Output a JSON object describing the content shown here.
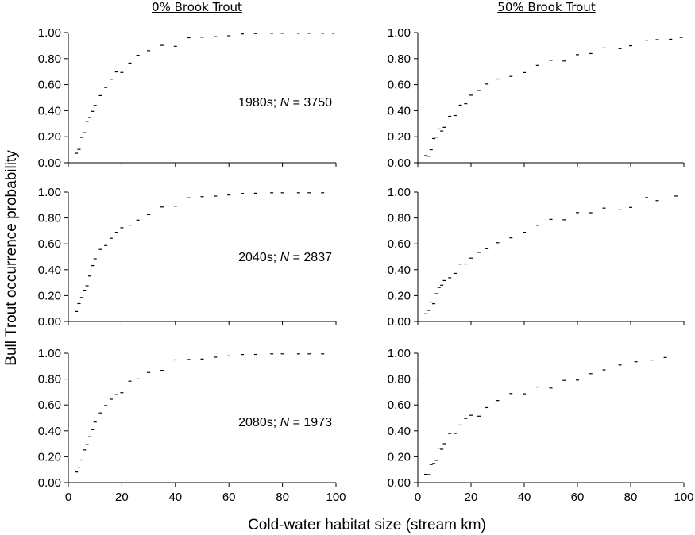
{
  "figure": {
    "column_titles": [
      "0% Brook Trout",
      "50% Brook Trout"
    ],
    "ylabel": "Bull Trout occurrence probability",
    "xlabel": "Cold-water habitat size (stream km)",
    "row_labels": [
      {
        "period": "1980s; ",
        "n_symbol": "N",
        "n_text": " = 3750"
      },
      {
        "period": "2040s; ",
        "n_symbol": "N",
        "n_text": " = 2837"
      },
      {
        "period": "2080s; ",
        "n_symbol": "N",
        "n_text": " = 1973"
      }
    ],
    "ytick_labels": [
      "0.00",
      "0.20",
      "0.40",
      "0.60",
      "0.80",
      "1.00"
    ],
    "xtick_labels": [
      "0",
      "20",
      "40",
      "60",
      "80",
      "100"
    ],
    "marker_color": "#000000"
  },
  "chart_data": [
    {
      "type": "scatter",
      "panel": "1980s, 0% Brook Trout",
      "xlim": [
        0,
        100
      ],
      "ylim": [
        0,
        1
      ],
      "grid": false,
      "n": 3750,
      "x": [
        3,
        4,
        5,
        6,
        7,
        8,
        9,
        10,
        12,
        14,
        16,
        18,
        20,
        23,
        26,
        30,
        35,
        40,
        45,
        50,
        55,
        60,
        65,
        70,
        76,
        80,
        86,
        90,
        95,
        99
      ],
      "y": [
        0.06,
        0.12,
        0.18,
        0.24,
        0.3,
        0.36,
        0.41,
        0.46,
        0.53,
        0.58,
        0.63,
        0.68,
        0.72,
        0.77,
        0.81,
        0.85,
        0.89,
        0.92,
        0.94,
        0.96,
        0.97,
        0.98,
        0.99,
        0.99,
        1.0,
        1.0,
        1.0,
        1.0,
        1.0,
        1.0
      ]
    },
    {
      "type": "scatter",
      "panel": "1980s, 50% Brook Trout",
      "xlim": [
        0,
        100
      ],
      "ylim": [
        0,
        1
      ],
      "grid": false,
      "n": 3750,
      "x": [
        3,
        4,
        5,
        6,
        7,
        8,
        9,
        10,
        12,
        14,
        16,
        18,
        20,
        23,
        26,
        30,
        35,
        40,
        45,
        50,
        55,
        60,
        65,
        70,
        76,
        80,
        86,
        90,
        95,
        99
      ],
      "y": [
        0.04,
        0.08,
        0.12,
        0.16,
        0.2,
        0.24,
        0.27,
        0.3,
        0.35,
        0.39,
        0.43,
        0.47,
        0.5,
        0.54,
        0.58,
        0.62,
        0.66,
        0.69,
        0.73,
        0.76,
        0.79,
        0.82,
        0.84,
        0.87,
        0.89,
        0.91,
        0.93,
        0.94,
        0.95,
        0.96
      ]
    },
    {
      "type": "scatter",
      "panel": "2040s, 0% Brook Trout",
      "xlim": [
        0,
        100
      ],
      "ylim": [
        0,
        1
      ],
      "grid": false,
      "n": 2837,
      "x": [
        3,
        4,
        5,
        6,
        7,
        8,
        9,
        10,
        12,
        14,
        16,
        18,
        20,
        23,
        26,
        30,
        35,
        40,
        45,
        50,
        55,
        60,
        65,
        70,
        76,
        80,
        86,
        90,
        95
      ],
      "y": [
        0.06,
        0.12,
        0.18,
        0.24,
        0.3,
        0.36,
        0.41,
        0.46,
        0.53,
        0.58,
        0.63,
        0.68,
        0.72,
        0.77,
        0.81,
        0.85,
        0.89,
        0.92,
        0.94,
        0.96,
        0.97,
        0.98,
        0.99,
        0.99,
        1.0,
        1.0,
        1.0,
        1.0,
        1.0
      ]
    },
    {
      "type": "scatter",
      "panel": "2040s, 50% Brook Trout",
      "xlim": [
        0,
        100
      ],
      "ylim": [
        0,
        1
      ],
      "grid": false,
      "n": 2837,
      "x": [
        3,
        4,
        5,
        6,
        7,
        8,
        9,
        10,
        12,
        14,
        16,
        18,
        20,
        23,
        26,
        30,
        35,
        40,
        45,
        50,
        55,
        60,
        65,
        70,
        76,
        80,
        86,
        90,
        97
      ],
      "y": [
        0.04,
        0.08,
        0.12,
        0.16,
        0.2,
        0.24,
        0.27,
        0.3,
        0.35,
        0.39,
        0.43,
        0.47,
        0.5,
        0.54,
        0.58,
        0.62,
        0.66,
        0.69,
        0.73,
        0.76,
        0.79,
        0.82,
        0.84,
        0.87,
        0.89,
        0.91,
        0.93,
        0.94,
        0.97
      ]
    },
    {
      "type": "scatter",
      "panel": "2080s, 0% Brook Trout",
      "xlim": [
        0,
        100
      ],
      "ylim": [
        0,
        1
      ],
      "grid": false,
      "n": 1973,
      "x": [
        3,
        4,
        5,
        6,
        7,
        8,
        9,
        10,
        12,
        14,
        16,
        18,
        20,
        23,
        26,
        30,
        35,
        40,
        45,
        50,
        55,
        60,
        65,
        70,
        76,
        80,
        86,
        90,
        95
      ],
      "y": [
        0.06,
        0.12,
        0.18,
        0.24,
        0.3,
        0.36,
        0.41,
        0.46,
        0.53,
        0.58,
        0.63,
        0.68,
        0.72,
        0.77,
        0.81,
        0.85,
        0.89,
        0.92,
        0.94,
        0.96,
        0.97,
        0.98,
        0.99,
        0.99,
        1.0,
        1.0,
        1.0,
        1.0,
        1.0
      ]
    },
    {
      "type": "scatter",
      "panel": "2080s, 50% Brook Trout",
      "xlim": [
        0,
        100
      ],
      "ylim": [
        0,
        1
      ],
      "grid": false,
      "n": 1973,
      "x": [
        3,
        4,
        5,
        6,
        7,
        8,
        9,
        10,
        12,
        14,
        16,
        18,
        20,
        23,
        26,
        30,
        35,
        40,
        45,
        50,
        55,
        60,
        65,
        70,
        76,
        82,
        88,
        93
      ],
      "y": [
        0.04,
        0.08,
        0.12,
        0.16,
        0.2,
        0.24,
        0.27,
        0.3,
        0.35,
        0.39,
        0.43,
        0.47,
        0.5,
        0.54,
        0.58,
        0.62,
        0.66,
        0.69,
        0.73,
        0.76,
        0.79,
        0.82,
        0.84,
        0.87,
        0.89,
        0.92,
        0.95,
        0.97
      ]
    }
  ]
}
